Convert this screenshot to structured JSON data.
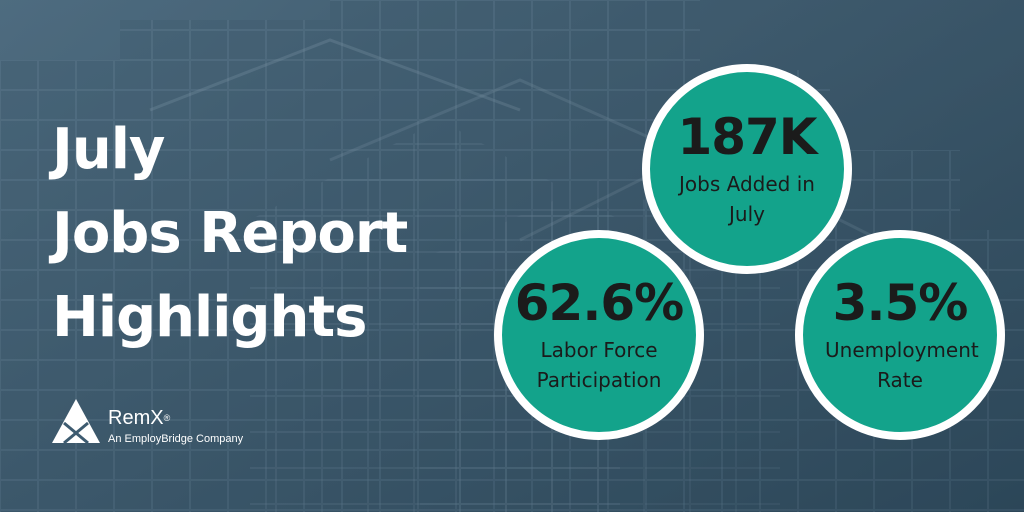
{
  "headline": {
    "line1": "July",
    "line2": "Jobs Report",
    "line3": "Highlights"
  },
  "stats": {
    "jobs_added": {
      "value": "187K",
      "label": "Jobs Added in July"
    },
    "labor_force": {
      "value": "62.6%",
      "label": "Labor Force Participation"
    },
    "unemployment": {
      "value": "3.5%",
      "label": "Unemployment Rate"
    }
  },
  "logo": {
    "name": "RemX",
    "reg": "®",
    "tagline": "An EmployBridge Company"
  },
  "colors": {
    "circle_fill": "#13a38b",
    "circle_border": "#ffffff",
    "background": "#3d5b70",
    "text_dark": "#1b1b1b",
    "text_light": "#ffffff"
  }
}
